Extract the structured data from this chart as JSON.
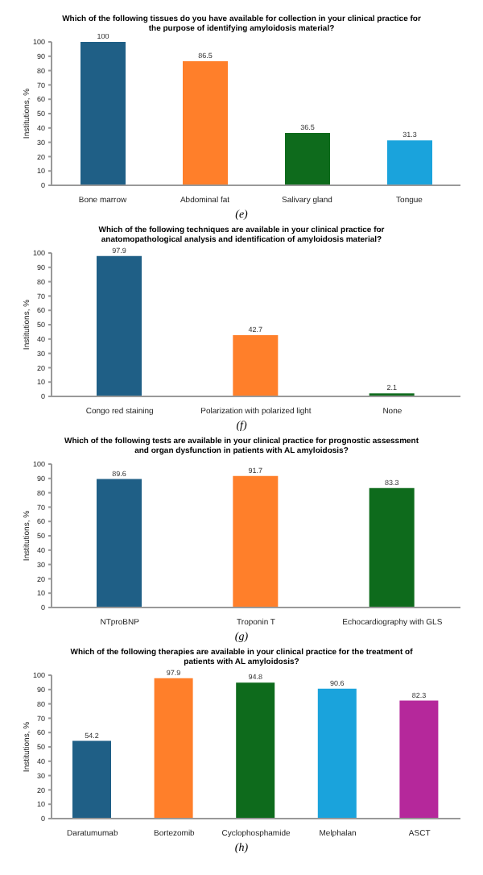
{
  "chart_data": [
    {
      "type": "bar",
      "title": "Which of the following tissues do you have available for collection in your clinical practice for the purpose of identifying amyloidosis material?",
      "categories": [
        "Bone marrow",
        "Abdominal fat",
        "Salivary gland",
        "Tongue"
      ],
      "values": [
        100,
        86.5,
        36.5,
        31.3
      ],
      "colors": [
        "#1f5f86",
        "#ff7f2a",
        "#0e6b1c",
        "#1aa3dc"
      ],
      "ylabel": "Institutions, %",
      "ylim": [
        0,
        100
      ],
      "yticks": [
        0,
        10,
        20,
        30,
        40,
        50,
        60,
        70,
        80,
        90,
        100
      ],
      "data_labels": true,
      "annotations": [
        "(e)"
      ]
    },
    {
      "type": "bar",
      "title": "Which of the following techniques are available in your clinical practice for anatomopathological analysis and identification of amyloidosis material?",
      "categories": [
        "Congo red staining",
        "Polarization with polarized light",
        "None"
      ],
      "values": [
        97.9,
        42.7,
        2.1
      ],
      "colors": [
        "#1f5f86",
        "#ff7f2a",
        "#0e6b1c"
      ],
      "ylabel": "Institutions, %",
      "ylim": [
        0,
        100
      ],
      "yticks": [
        0,
        10,
        20,
        30,
        40,
        50,
        60,
        70,
        80,
        90,
        100
      ],
      "data_labels": true,
      "annotations": [
        "(f)"
      ]
    },
    {
      "type": "bar",
      "title": "Which of the following tests are available in your clinical practice for prognostic assessment and organ dysfunction in patients with AL amyloidosis?",
      "categories": [
        "NTproBNP",
        "Troponin T",
        "Echocardiography with GLS"
      ],
      "values": [
        89.6,
        91.7,
        83.3
      ],
      "colors": [
        "#1f5f86",
        "#ff7f2a",
        "#0e6b1c"
      ],
      "ylabel": "Institutions, %",
      "ylim": [
        0,
        100
      ],
      "yticks": [
        0,
        10,
        20,
        30,
        40,
        50,
        60,
        70,
        80,
        90,
        100
      ],
      "data_labels": true,
      "annotations": [
        "(g)"
      ]
    },
    {
      "type": "bar",
      "title": "Which of the following therapies are available in your clinical practice for the treatment of patients with AL amyloidosis?",
      "categories": [
        "Daratumumab",
        "Bortezomib",
        "Cyclophosphamide",
        "Melphalan",
        "ASCT"
      ],
      "values": [
        54.2,
        97.9,
        94.8,
        90.6,
        82.3
      ],
      "colors": [
        "#1f5f86",
        "#ff7f2a",
        "#0e6b1c",
        "#1aa3dc",
        "#b5289b"
      ],
      "ylabel": "Institutions, %",
      "ylim": [
        0,
        100
      ],
      "yticks": [
        0,
        10,
        20,
        30,
        40,
        50,
        60,
        70,
        80,
        90,
        100
      ],
      "data_labels": true,
      "annotations": [
        "(h)"
      ]
    }
  ]
}
